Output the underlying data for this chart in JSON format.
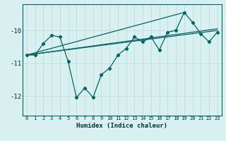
{
  "xlabel": "Humidex (Indice chaleur)",
  "ylabel": "",
  "xlim": [
    -0.5,
    23.5
  ],
  "ylim": [
    -12.6,
    -9.2
  ],
  "yticks": [
    -12,
    -11,
    -10
  ],
  "xticks": [
    0,
    1,
    2,
    3,
    4,
    5,
    6,
    7,
    8,
    9,
    10,
    11,
    12,
    13,
    14,
    15,
    16,
    17,
    18,
    19,
    20,
    21,
    22,
    23
  ],
  "bg_color": "#d8f0f0",
  "line_color": "#006666",
  "grid_color": "#c0dede",
  "series": [
    [
      0,
      -10.75
    ],
    [
      1,
      -10.75
    ],
    [
      2,
      -10.4
    ],
    [
      3,
      -10.15
    ],
    [
      4,
      -10.2
    ],
    [
      5,
      -10.95
    ],
    [
      6,
      -12.05
    ],
    [
      7,
      -11.75
    ],
    [
      8,
      -12.05
    ],
    [
      9,
      -11.35
    ],
    [
      10,
      -11.15
    ],
    [
      11,
      -10.75
    ],
    [
      12,
      -10.55
    ],
    [
      13,
      -10.2
    ],
    [
      14,
      -10.35
    ],
    [
      15,
      -10.2
    ],
    [
      16,
      -10.6
    ],
    [
      17,
      -10.05
    ],
    [
      18,
      -10.0
    ],
    [
      19,
      -9.45
    ],
    [
      20,
      -9.75
    ],
    [
      21,
      -10.1
    ],
    [
      22,
      -10.35
    ],
    [
      23,
      -10.05
    ]
  ],
  "regression_lines": [
    [
      [
        0,
        -10.75
      ],
      [
        23,
        -10.0
      ]
    ],
    [
      [
        0,
        -10.75
      ],
      [
        23,
        -9.95
      ]
    ],
    [
      [
        0,
        -10.75
      ],
      [
        19,
        -9.45
      ]
    ]
  ]
}
